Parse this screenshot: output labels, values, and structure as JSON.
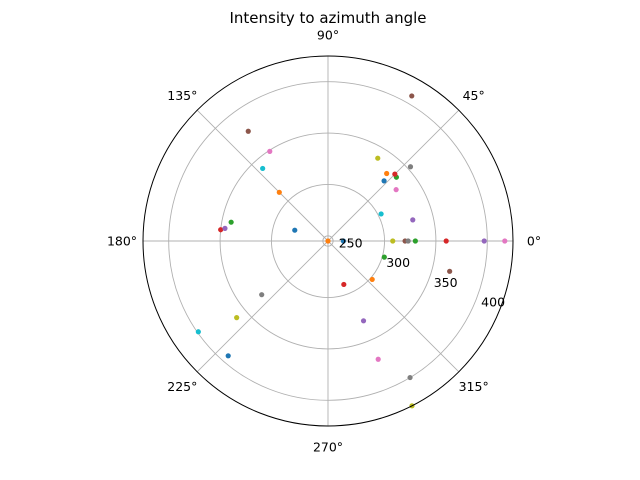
{
  "chart_data": {
    "type": "scatter",
    "projection": "polar",
    "title": "Intensity to azimuth angle",
    "xlabel": "",
    "ylabel": "",
    "theta_unit": "degrees",
    "theta_ticks": [
      "0°",
      "45°",
      "90°",
      "135°",
      "180°",
      "225°",
      "270°",
      "315°"
    ],
    "theta_tick_values": [
      0,
      45,
      90,
      135,
      180,
      225,
      270,
      315
    ],
    "r_ticks": [
      "250",
      "300",
      "350",
      "400"
    ],
    "r_tick_values": [
      250,
      300,
      350,
      400
    ],
    "rlim": [
      245,
      425
    ],
    "r_label_angle_deg": 22.5,
    "grid": true,
    "point_colors": [
      "#1f77b4",
      "#ff7f0e",
      "#2ca02c",
      "#d62728",
      "#9467bd",
      "#8c564b",
      "#e377c2",
      "#7f7f7f",
      "#bcbd22",
      "#17becf"
    ],
    "points": [
      {
        "theta": 0,
        "r": 260
      },
      {
        "theta": 0,
        "r": 245
      },
      {
        "theta": 0,
        "r": 330
      },
      {
        "theta": 0,
        "r": 360
      },
      {
        "theta": 0,
        "r": 397
      },
      {
        "theta": 0,
        "r": 320
      },
      {
        "theta": 0,
        "r": 417
      },
      {
        "theta": 0,
        "r": 323
      },
      {
        "theta": 0,
        "r": 308
      },
      {
        "theta": 27,
        "r": 303
      },
      {
        "theta": 47,
        "r": 325
      },
      {
        "theta": 49,
        "r": 332
      },
      {
        "theta": 43,
        "r": 336
      },
      {
        "theta": 45,
        "r": 337
      },
      {
        "theta": 14,
        "r": 330
      },
      {
        "theta": 60,
        "r": 408
      },
      {
        "theta": 37,
        "r": 328
      },
      {
        "theta": 42,
        "r": 353
      },
      {
        "theta": 59,
        "r": 339
      },
      {
        "theta": 132,
        "r": 340
      },
      {
        "theta": 162,
        "r": 279
      },
      {
        "theta": 135,
        "r": 312
      },
      {
        "theta": 169,
        "r": 341
      },
      {
        "theta": 174,
        "r": 350
      },
      {
        "theta": 173,
        "r": 346
      },
      {
        "theta": 126,
        "r": 377
      },
      {
        "theta": 123,
        "r": 349
      },
      {
        "theta": 219,
        "r": 328
      },
      {
        "theta": 220,
        "r": 361
      },
      {
        "theta": 215,
        "r": 399
      },
      {
        "theta": 229,
        "r": 393
      },
      {
        "theta": 319,
        "r": 302
      },
      {
        "theta": 344,
        "r": 302
      },
      {
        "theta": 290,
        "r": 290
      },
      {
        "theta": 294,
        "r": 330
      },
      {
        "theta": 346,
        "r": 367
      },
      {
        "theta": 293,
        "r": 370
      },
      {
        "theta": 301,
        "r": 400
      },
      {
        "theta": 297,
        "r": 425
      }
    ]
  }
}
